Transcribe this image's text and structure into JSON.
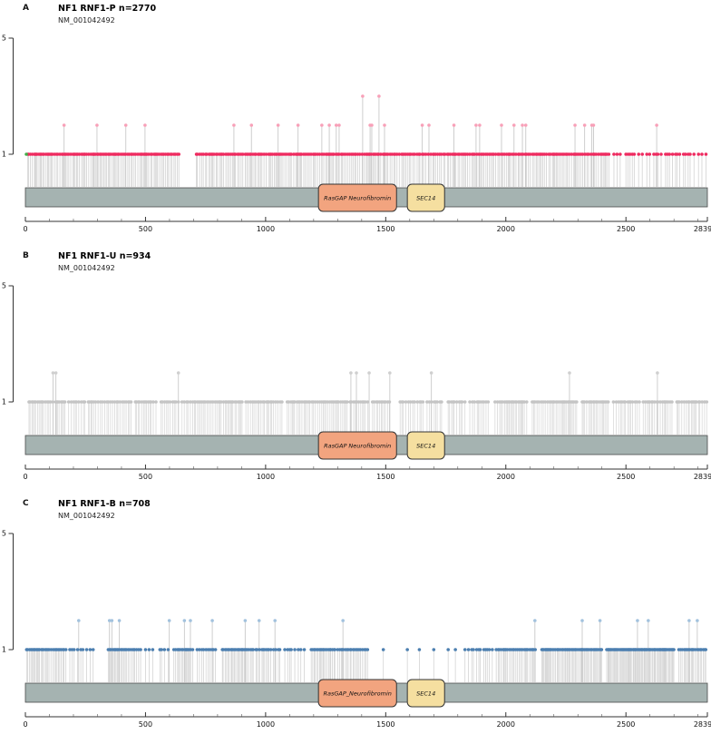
{
  "chart_data": {
    "type": "lollipop",
    "gene": "NF1",
    "transcript": "NM_001042492",
    "xlim": [
      0,
      2839
    ],
    "ylim": [
      1,
      5
    ],
    "yticks": [
      5,
      1
    ],
    "xticks_major": [
      0,
      500,
      1000,
      1500,
      2000,
      2500,
      2839
    ],
    "xtick_minor_interval": 100,
    "gene_bar_color": "#a5b3b1",
    "gene_bar_border_color": "#4a4a4a",
    "axis_color": "#333333",
    "panels": [
      {
        "panel_label": "A",
        "title": "NF1 RNF1-P n=2770",
        "subtitle": "NM_001042492",
        "n": 2770,
        "dot_color": "#ee2a5f",
        "tall_dot_color": "#f8a0b8",
        "stem_color": "#d2d2d2",
        "extra_dots": [
          {
            "pos": 4,
            "count": 1,
            "color": "#3fae49"
          }
        ],
        "baseline_segments": [
          [
            10,
            645,
            6
          ],
          [
            712,
            2432,
            7
          ],
          [
            2500,
            2839,
            13
          ]
        ],
        "isolated_positions": [
          2450,
          2463,
          2476
        ],
        "tall_mutations": [
          [
            161,
            2
          ],
          [
            298,
            2
          ],
          [
            418,
            2
          ],
          [
            498,
            2
          ],
          [
            868,
            2
          ],
          [
            941,
            2
          ],
          [
            1052,
            2
          ],
          [
            1135,
            2
          ],
          [
            1234,
            2
          ],
          [
            1265,
            2
          ],
          [
            1294,
            2
          ],
          [
            1306,
            2
          ],
          [
            1404,
            3
          ],
          [
            1435,
            2
          ],
          [
            1442,
            2
          ],
          [
            1472,
            3
          ],
          [
            1495,
            2
          ],
          [
            1652,
            2
          ],
          [
            1680,
            2
          ],
          [
            1784,
            2
          ],
          [
            1876,
            2
          ],
          [
            1891,
            2
          ],
          [
            1982,
            2
          ],
          [
            2034,
            2
          ],
          [
            2069,
            2
          ],
          [
            2083,
            2
          ],
          [
            2288,
            2
          ],
          [
            2328,
            2
          ],
          [
            2358,
            2
          ],
          [
            2365,
            2
          ],
          [
            2628,
            2
          ]
        ],
        "domains": [
          {
            "name": "RasGAP Neurofibromin",
            "start": 1220,
            "end": 1545,
            "color": "#f2a47f"
          },
          {
            "name": "SEC14",
            "start": 1590,
            "end": 1745,
            "color": "#f5dfa0"
          }
        ]
      },
      {
        "panel_label": "B",
        "title": "NF1 RNF1-U n=934",
        "subtitle": "NM_001042492",
        "n": 934,
        "dot_color": "#c4c4c4",
        "tall_dot_color": "#cfcfcf",
        "stem_color": "#dadada",
        "extra_dots": [],
        "baseline_segments": [
          [
            15,
            115,
            7
          ],
          [
            126,
            168,
            7
          ],
          [
            180,
            250,
            8
          ],
          [
            262,
            445,
            7
          ],
          [
            458,
            550,
            8
          ],
          [
            565,
            640,
            8
          ],
          [
            652,
            905,
            7
          ],
          [
            918,
            1075,
            7
          ],
          [
            1090,
            1340,
            7
          ],
          [
            1352,
            1430,
            7
          ],
          [
            1445,
            1525,
            8
          ],
          [
            1560,
            1660,
            8
          ],
          [
            1672,
            1735,
            8
          ],
          [
            1760,
            1830,
            8
          ],
          [
            1850,
            1930,
            8
          ],
          [
            1955,
            2090,
            7
          ],
          [
            2110,
            2300,
            7
          ],
          [
            2318,
            2430,
            7
          ],
          [
            2448,
            2560,
            8
          ],
          [
            2572,
            2700,
            7
          ],
          [
            2712,
            2839,
            7
          ]
        ],
        "isolated_positions": [],
        "tall_mutations": [
          [
            115,
            2
          ],
          [
            127,
            2
          ],
          [
            637,
            2
          ],
          [
            1355,
            2
          ],
          [
            1378,
            2
          ],
          [
            1431,
            2
          ],
          [
            1517,
            2
          ],
          [
            1690,
            2
          ],
          [
            2265,
            2
          ],
          [
            2631,
            2
          ]
        ],
        "domains": [
          {
            "name": "RasGAP Neurofibromin",
            "start": 1220,
            "end": 1545,
            "color": "#f2a47f"
          },
          {
            "name": "SEC14",
            "start": 1590,
            "end": 1745,
            "color": "#f5dfa0"
          }
        ]
      },
      {
        "panel_label": "C",
        "title": "NF1 RNF1-B n=708",
        "subtitle": "NM_001042492",
        "n": 708,
        "dot_color": "#4c7fb0",
        "tall_dot_color": "#a2c2de",
        "stem_color": "#d4d4d4",
        "extra_dots": [],
        "baseline_segments": [
          [
            5,
            170,
            6
          ],
          [
            185,
            240,
            10
          ],
          [
            255,
            300,
            14
          ],
          [
            345,
            480,
            6
          ],
          [
            560,
            600,
            12
          ],
          [
            618,
            700,
            6
          ],
          [
            715,
            800,
            8
          ],
          [
            820,
            950,
            6
          ],
          [
            960,
            1060,
            8
          ],
          [
            1080,
            1170,
            11
          ],
          [
            1190,
            1290,
            5
          ],
          [
            1300,
            1430,
            6
          ],
          [
            1830,
            1950,
            11
          ],
          [
            1960,
            2130,
            6
          ],
          [
            2150,
            2400,
            5
          ],
          [
            2420,
            2700,
            4
          ],
          [
            2720,
            2839,
            6
          ]
        ],
        "isolated_positions": [
          500,
          515,
          530,
          1490,
          1590,
          1640,
          1700,
          1760,
          1790
        ],
        "tall_mutations": [
          [
            222,
            2
          ],
          [
            350,
            2
          ],
          [
            360,
            2
          ],
          [
            391,
            2
          ],
          [
            599,
            2
          ],
          [
            662,
            2
          ],
          [
            687,
            2
          ],
          [
            778,
            2
          ],
          [
            915,
            2
          ],
          [
            973,
            2
          ],
          [
            1039,
            2
          ],
          [
            1322,
            2
          ],
          [
            2121,
            2
          ],
          [
            2318,
            2
          ],
          [
            2392,
            2
          ],
          [
            2548,
            2
          ],
          [
            2593,
            2
          ],
          [
            2763,
            2
          ],
          [
            2797,
            2
          ]
        ],
        "domains": [
          {
            "name": "RasGAP_Neurofibromin",
            "start": 1220,
            "end": 1545,
            "color": "#f2a47f"
          },
          {
            "name": "SEC14",
            "start": 1590,
            "end": 1745,
            "color": "#f5dfa0"
          }
        ]
      }
    ]
  }
}
